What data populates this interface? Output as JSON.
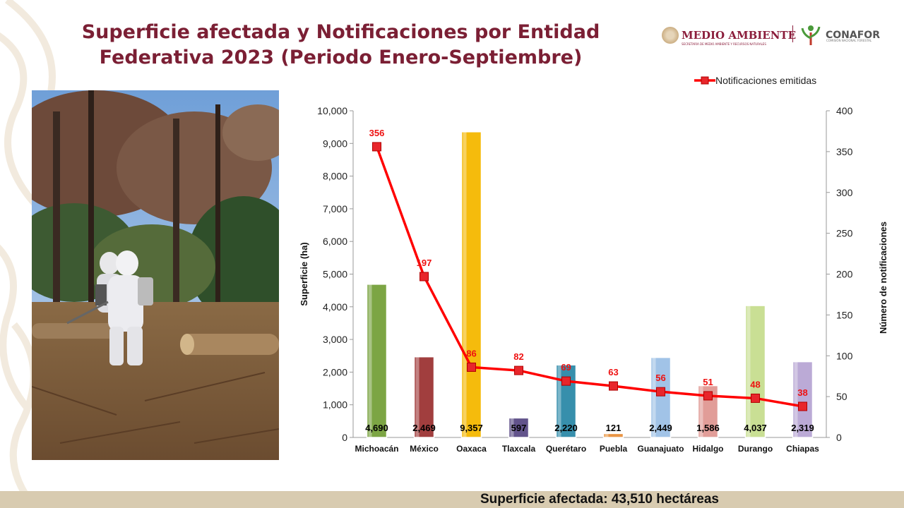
{
  "slide": {
    "title_line1": "Superficie afectada y Notificaciones por Entidad",
    "title_line2": "Federativa 2023 (Periodo Enero-Septiembre)",
    "footer": "Superficie afectada: 43,510 hectáreas"
  },
  "logos": {
    "medio_ambiente": "MEDIO AMBIENTE",
    "medio_ambiente_sub": "SECRETARÍA DE MEDIO AMBIENTE Y RECURSOS NATURALES",
    "conafor": "CONAFOR",
    "conafor_sub": "COMISIÓN NACIONAL FORESTAL"
  },
  "colors": {
    "title": "#7b1f34",
    "line": "#ff0000",
    "footer_band": "#d8cbb0"
  },
  "chart_data": {
    "type": "bar",
    "categories": [
      "Michoacán",
      "México",
      "Oaxaca",
      "Tlaxcala",
      "Querétaro",
      "Puebla",
      "Guanajuato",
      "Hidalgo",
      "Durango",
      "Chiapas"
    ],
    "bar_values": [
      4690,
      2469,
      9357,
      597,
      2220,
      121,
      2449,
      1586,
      4037,
      2319
    ],
    "bar_labels": [
      "4,690",
      "2,469",
      "9,357",
      "597",
      "2,220",
      "121",
      "2,449",
      "1,586",
      "4,037",
      "2,319"
    ],
    "bar_colors": [
      "#76a13b",
      "#9c3434",
      "#f5b800",
      "#5a4a85",
      "#2d8aa8",
      "#e8903a",
      "#9cc0e6",
      "#e09893",
      "#c7de8f",
      "#b8a6d4"
    ],
    "line_series": {
      "name": "Notificaciones emitidas",
      "values": [
        356,
        197,
        86,
        82,
        69,
        63,
        56,
        51,
        48,
        38
      ],
      "color": "#ff0000"
    },
    "ylabel_left": "Superficie (ha)",
    "ylabel_right": "Número de notificaciones",
    "ylim_left": [
      0,
      10000
    ],
    "ylim_right": [
      0,
      400
    ],
    "yticks_left": [
      "0",
      "1,000",
      "2,000",
      "3,000",
      "4,000",
      "5,000",
      "6,000",
      "7,000",
      "8,000",
      "9,000",
      "10,000"
    ],
    "yticks_right": [
      "0",
      "50",
      "100",
      "150",
      "200",
      "250",
      "300",
      "350",
      "400"
    ],
    "legend_position": "top-right",
    "grid": false
  }
}
